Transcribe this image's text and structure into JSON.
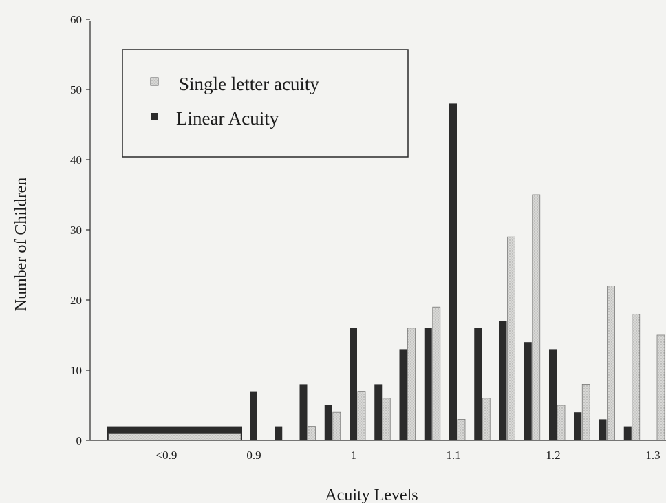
{
  "chart_data": {
    "type": "bar",
    "xlabel": "Acuity Levels",
    "ylabel": "Number of Children",
    "ylim": [
      0,
      60
    ],
    "yticks": [
      0,
      10,
      20,
      30,
      40,
      50,
      60
    ],
    "x_tick_labels": [
      "<0.9",
      "0.9",
      "1",
      "1.1",
      "1.2",
      "1.3"
    ],
    "legend": {
      "placement": "top-left",
      "entries": [
        "Single letter acuity",
        "Linear Acuity"
      ]
    },
    "colors": {
      "single": "#cfcfcf",
      "linear": "#2b2b2b",
      "background": "#f3f3f1"
    },
    "categories": [
      "<0.9",
      "0.9",
      "0.925",
      "0.95",
      "0.975",
      "1",
      "1.025",
      "1.05",
      "1.075",
      "1.1",
      "1.125",
      "1.15",
      "1.175",
      "1.2",
      "1.225",
      "1.25",
      "1.275",
      "1.3"
    ],
    "series": [
      {
        "name": "Single letter acuity",
        "values": [
          1,
          0,
          0,
          2,
          4,
          7,
          6,
          16,
          19,
          3,
          6,
          29,
          35,
          5,
          8,
          22,
          18,
          15
        ]
      },
      {
        "name": "Linear Acuity",
        "values": [
          2,
          7,
          2,
          8,
          5,
          16,
          8,
          13,
          16,
          48,
          16,
          17,
          14,
          13,
          4,
          3,
          2,
          0
        ]
      }
    ]
  }
}
